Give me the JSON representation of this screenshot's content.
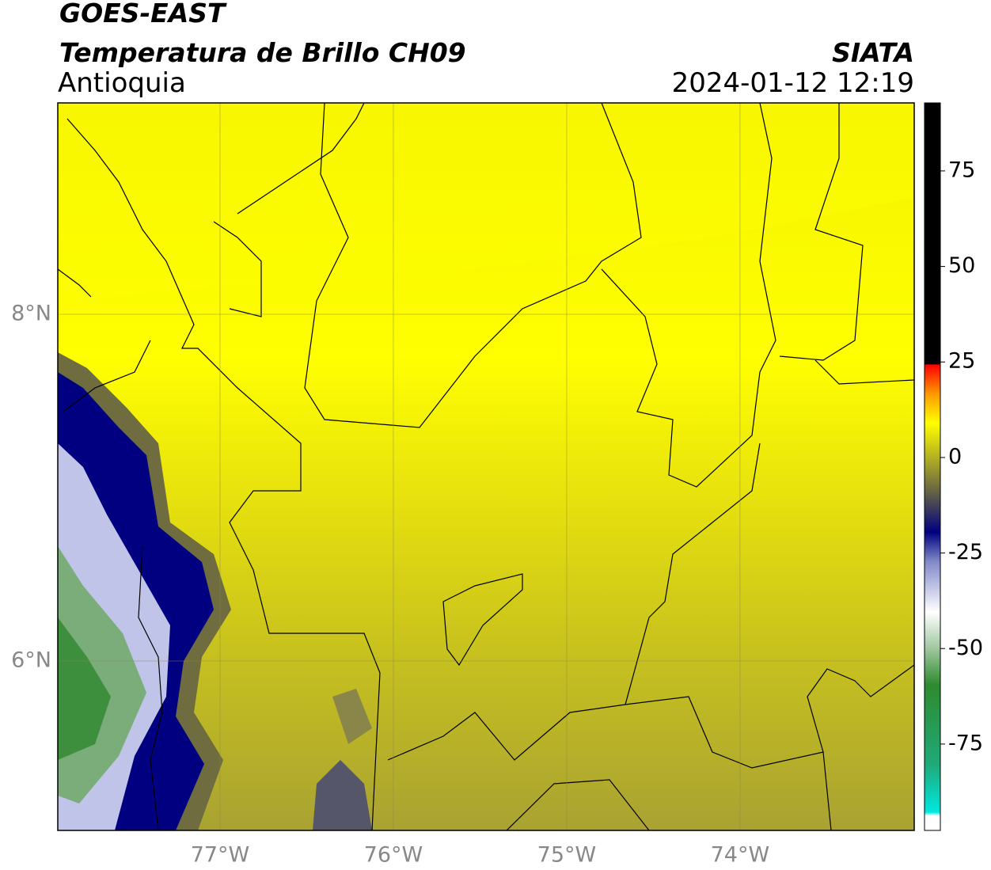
{
  "header": {
    "title": "GOES-EAST",
    "subtitle": "Temperatura de Brillo CH09",
    "region": "Antioquia",
    "source": "SIATA",
    "datetime": "2024-01-12 12:19"
  },
  "map": {
    "lon_range": [
      -77.936,
      -72.995
    ],
    "lat_range": [
      5.023,
      9.219
    ],
    "lon_ticks": [
      {
        "value": -77,
        "label": "77°W"
      },
      {
        "value": -76,
        "label": "76°W"
      },
      {
        "value": -75,
        "label": "75°W"
      },
      {
        "value": -74,
        "label": "74°W"
      }
    ],
    "lat_ticks": [
      {
        "value": 8,
        "label": "8°N"
      },
      {
        "value": 6,
        "label": "6°N"
      }
    ],
    "grid": true
  },
  "colorbar": {
    "range": [
      -97.6,
      92.8
    ],
    "ticks": [
      75,
      50,
      25,
      0,
      -25,
      -50,
      -75
    ]
  }
}
